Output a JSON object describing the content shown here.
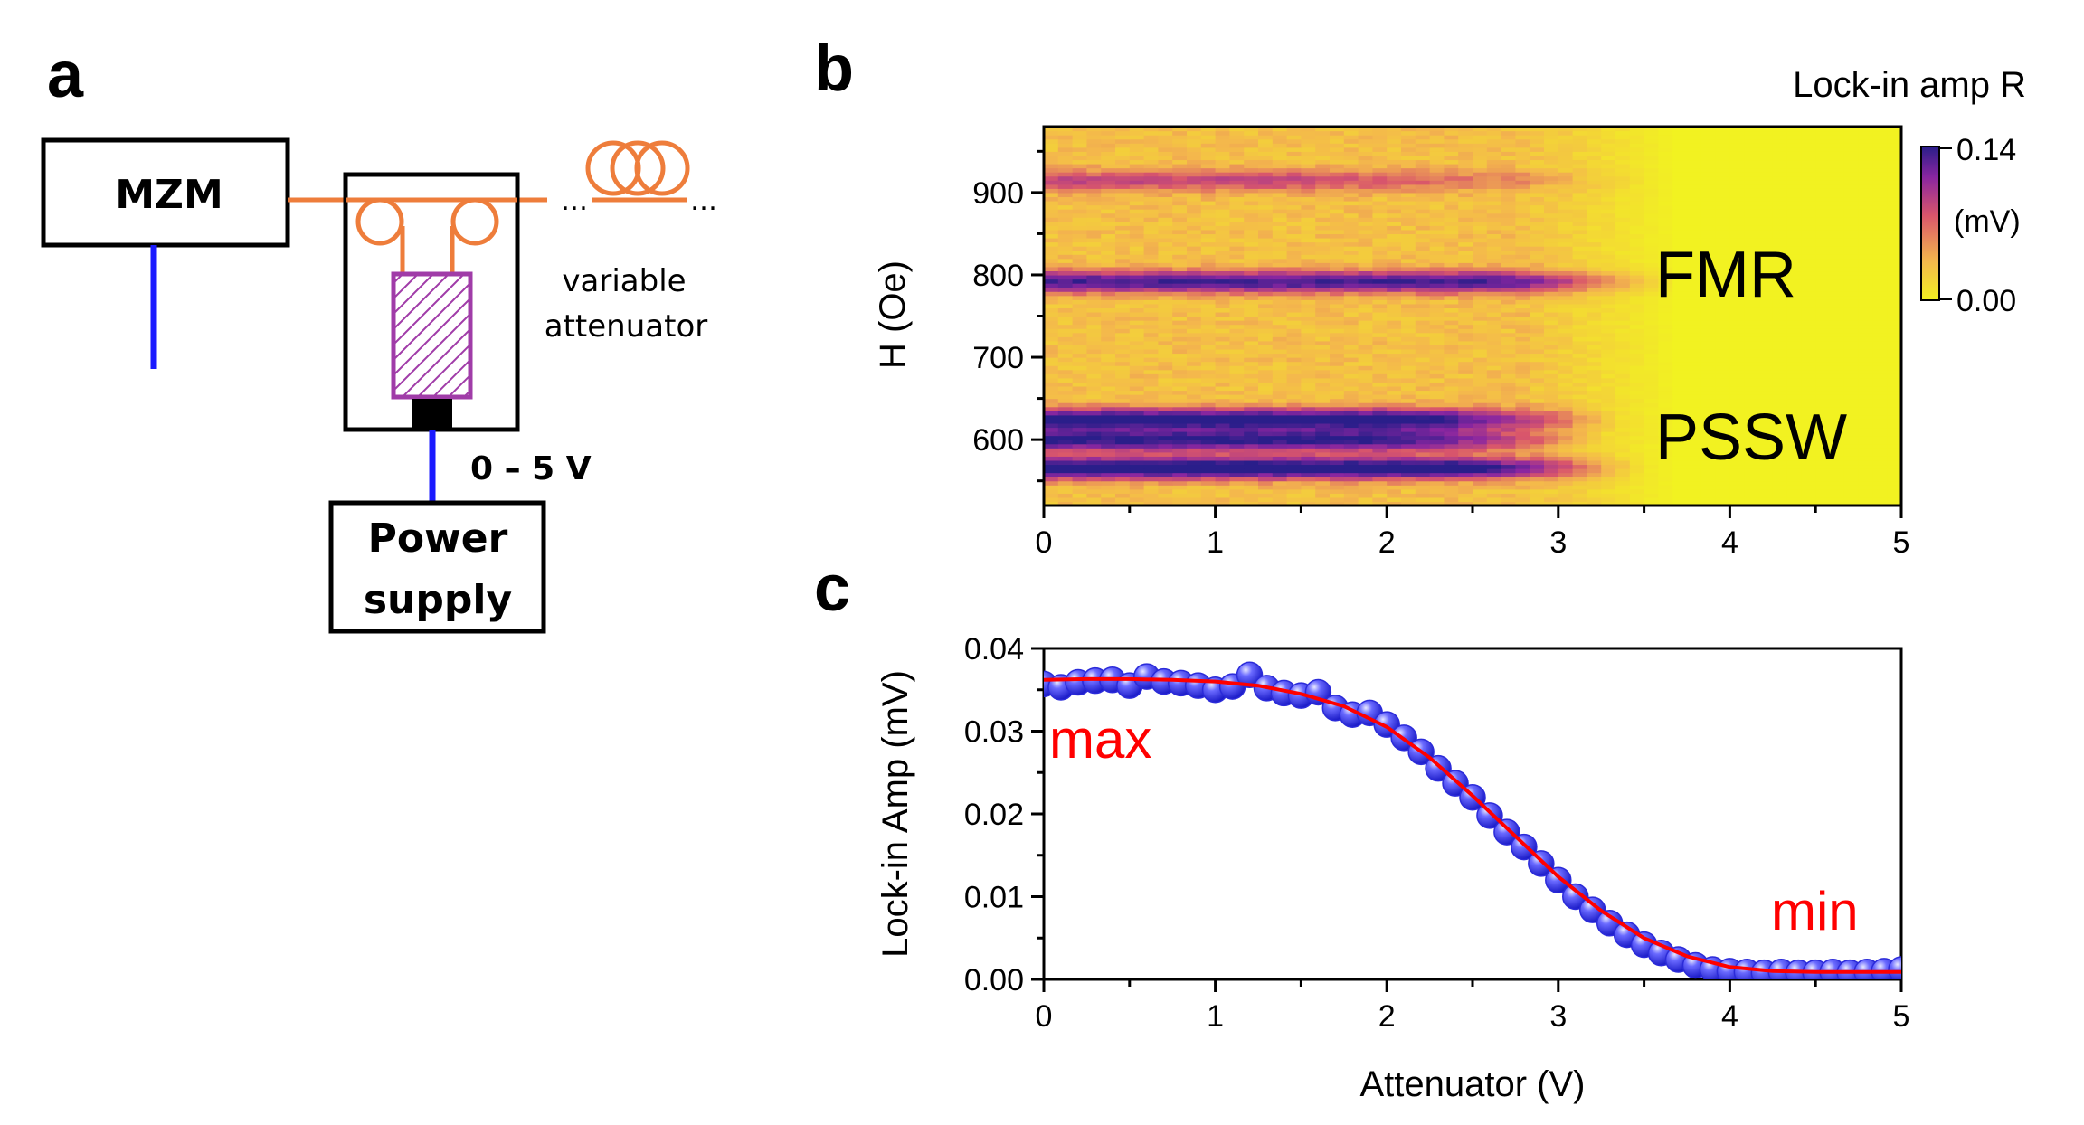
{
  "panels": {
    "a": "a",
    "b": "b",
    "c": "c"
  },
  "diagram": {
    "mzm_label": "MZM",
    "attenuator_label_line1": "variable",
    "attenuator_label_line2": "attenuator",
    "voltage_label": "0 – 5 V",
    "power_label_line1": "Power",
    "power_label_line2": "supply",
    "colors": {
      "fiber": "#ee7d3b",
      "wire": "#1a1aff",
      "element": "#a03ca8"
    }
  },
  "chart_data": [
    {
      "type": "heatmap",
      "title": "Lock-in amp R",
      "xlabel": "",
      "ylabel": "H (Oe)",
      "xlim": [
        0,
        5
      ],
      "ylim": [
        520,
        980
      ],
      "x_ticks": [
        "0",
        "1",
        "2",
        "3",
        "4",
        "5"
      ],
      "y_ticks": [
        "600",
        "700",
        "800",
        "900"
      ],
      "colorbar": {
        "min_label": "0.00",
        "max_label": "0.14",
        "unit": "(mV)",
        "min": 0.0,
        "max": 0.14,
        "colors": [
          "#f2f221",
          "#f4b84c",
          "#d9566b",
          "#8a26a0",
          "#2a1e8a"
        ]
      },
      "bands": [
        {
          "h": 915,
          "amp": 0.05,
          "fade_start": 1.5,
          "fade_end": 3.6
        },
        {
          "h": 792,
          "amp": 0.1,
          "fade_start": 2.6,
          "fade_end": 3.7
        },
        {
          "h": 625,
          "amp": 0.12,
          "fade_start": 2.2,
          "fade_end": 3.4
        },
        {
          "h": 600,
          "amp": 0.11,
          "fade_start": 2.0,
          "fade_end": 3.3
        },
        {
          "h": 566,
          "amp": 0.13,
          "fade_start": 2.4,
          "fade_end": 3.5
        }
      ],
      "annotations": [
        "FMR",
        "PSSW"
      ]
    },
    {
      "type": "scatter",
      "title": "",
      "xlabel": "Attenuator (V)",
      "ylabel": "Lock-in Amp (mV)",
      "xlim": [
        0,
        5
      ],
      "ylim": [
        0,
        0.04
      ],
      "x_ticks": [
        "0",
        "1",
        "2",
        "3",
        "4",
        "5"
      ],
      "y_ticks": [
        "0.00",
        "0.01",
        "0.02",
        "0.03",
        "0.04"
      ],
      "series": [
        {
          "marker_color": "#2b2bd9",
          "x": [
            0.0,
            0.1,
            0.2,
            0.3,
            0.4,
            0.5,
            0.6,
            0.7,
            0.8,
            0.9,
            1.0,
            1.1,
            1.2,
            1.3,
            1.4,
            1.5,
            1.6,
            1.7,
            1.8,
            1.9,
            2.0,
            2.1,
            2.2,
            2.3,
            2.4,
            2.5,
            2.6,
            2.7,
            2.8,
            2.9,
            3.0,
            3.1,
            3.2,
            3.3,
            3.4,
            3.5,
            3.6,
            3.7,
            3.8,
            3.9,
            4.0,
            4.1,
            4.2,
            4.3,
            4.4,
            4.5,
            4.6,
            4.7,
            4.8,
            4.9,
            5.0
          ],
          "y": [
            0.0357,
            0.0353,
            0.0359,
            0.0361,
            0.0362,
            0.0355,
            0.0366,
            0.036,
            0.0358,
            0.0355,
            0.035,
            0.0354,
            0.0368,
            0.0352,
            0.0346,
            0.0343,
            0.0347,
            0.0328,
            0.032,
            0.0322,
            0.0308,
            0.0292,
            0.0275,
            0.0255,
            0.0237,
            0.022,
            0.0198,
            0.0178,
            0.016,
            0.014,
            0.012,
            0.01,
            0.0084,
            0.0068,
            0.0054,
            0.0042,
            0.0032,
            0.0024,
            0.0017,
            0.0012,
            0.001,
            0.0009,
            0.0008,
            0.0009,
            0.0008,
            0.0008,
            0.0009,
            0.0008,
            0.0009,
            0.001,
            0.0012
          ]
        },
        {
          "line_color": "#ff0000",
          "type": "fit",
          "x": [
            0.0,
            0.25,
            0.5,
            0.75,
            1.0,
            1.25,
            1.5,
            1.75,
            2.0,
            2.25,
            2.5,
            2.75,
            3.0,
            3.25,
            3.5,
            3.75,
            4.0,
            4.25,
            4.5,
            4.75,
            5.0
          ],
          "y": [
            0.0362,
            0.0363,
            0.0363,
            0.0362,
            0.036,
            0.0355,
            0.0345,
            0.033,
            0.0305,
            0.0268,
            0.0222,
            0.0173,
            0.0124,
            0.0083,
            0.005,
            0.0028,
            0.0015,
            0.001,
            0.0009,
            0.0009,
            0.0009
          ]
        }
      ],
      "annotations": [
        "max",
        "min"
      ],
      "annotation_color": "#ff0000"
    }
  ]
}
